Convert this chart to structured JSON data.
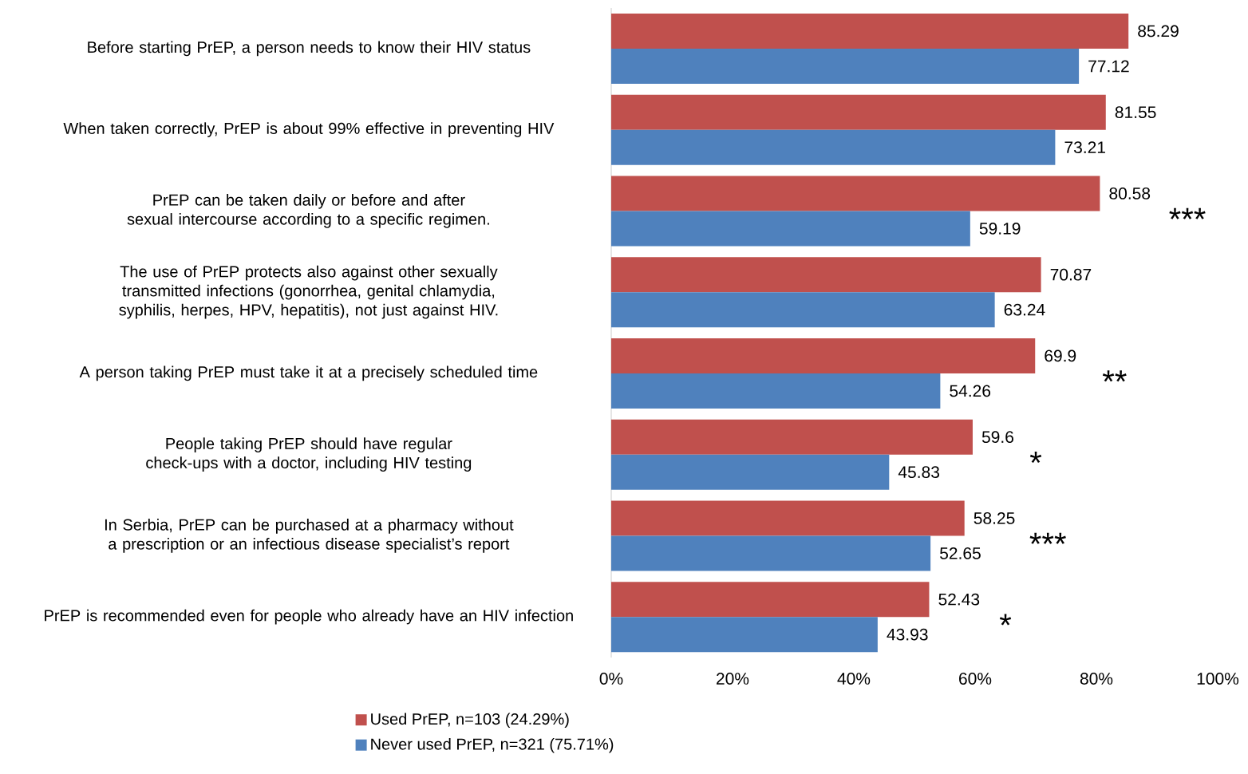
{
  "chart_data": {
    "type": "bar",
    "orientation": "horizontal",
    "categories": [
      "Before starting PrEP, a person needs to know their HIV status",
      "When taken correctly, PrEP is about 99% effective in preventing HIV",
      "PrEP can be taken daily or before and after sexual intercourse according to a specific regimen.",
      "The use of PrEP protects also against other sexually transmitted infections (gonorrhea, genital chlamydia, syphilis, herpes, HPV, hepatitis), not just against HIV.",
      "A person taking PrEP must take it at a precisely scheduled time",
      "People taking PrEP should have regular check-ups with a doctor, including HIV testing",
      "In Serbia, PrEP can be purchased at a pharmacy without a prescription or an infectious disease specialist’s report",
      "PrEP is recommended even for people who already have an HIV infection"
    ],
    "series": [
      {
        "name": "Used PrEP, n=103 (24.29%)",
        "color": "#c0504d",
        "values": [
          85.29,
          81.55,
          80.58,
          70.87,
          69.9,
          59.6,
          58.25,
          52.43
        ]
      },
      {
        "name": "Never used PrEP, n=321 (75.71%)",
        "color": "#4f81bd",
        "values": [
          77.12,
          73.21,
          59.19,
          63.24,
          54.26,
          45.83,
          52.65,
          43.93
        ]
      }
    ],
    "xlim": [
      0,
      100
    ],
    "xticks": [
      {
        "value": 0,
        "label": "0%"
      },
      {
        "value": 20,
        "label": "20%"
      },
      {
        "value": 40,
        "label": "40%"
      },
      {
        "value": 60,
        "label": "60%"
      },
      {
        "value": 80,
        "label": "80%"
      },
      {
        "value": 100,
        "label": "100%"
      }
    ],
    "data_labels": true,
    "legend": "bottom",
    "annotations": [
      "***",
      "**",
      "*",
      "***",
      "*"
    ]
  }
}
